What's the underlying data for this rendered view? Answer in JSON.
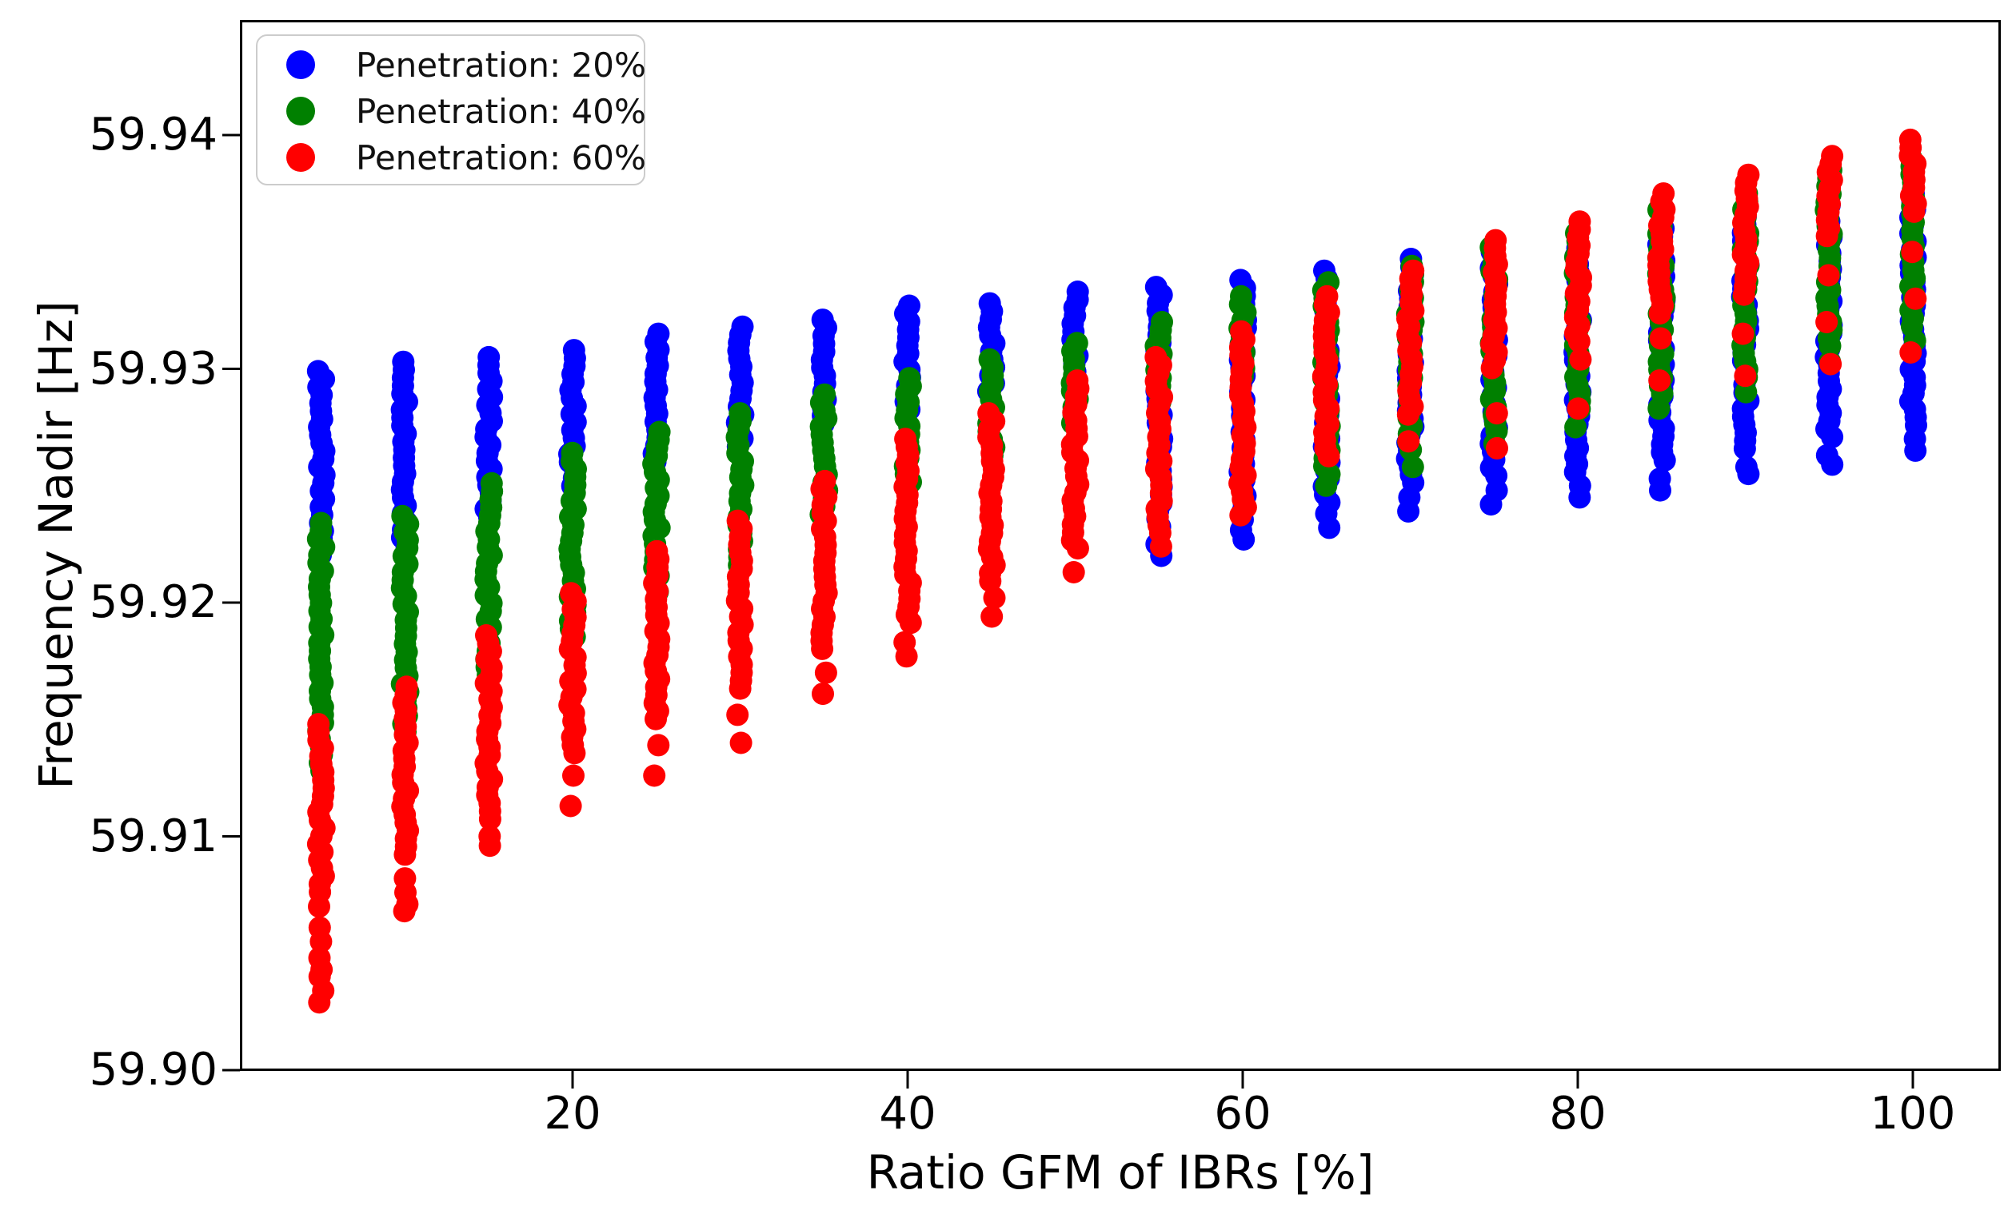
{
  "axes": {
    "xlabel": "Ratio GFM of IBRs [%]",
    "ylabel": "Frequency Nadir [Hz]",
    "x_ticks": [
      20,
      40,
      60,
      80,
      100
    ],
    "x_tick_labels": [
      "20",
      "40",
      "60",
      "80",
      "100"
    ],
    "y_ticks": [
      59.9,
      59.91,
      59.92,
      59.93,
      59.94
    ],
    "y_tick_labels": [
      "59.90",
      "59.91",
      "59.92",
      "59.93",
      "59.94"
    ]
  },
  "legend": {
    "items": [
      {
        "label": "Penetration: 20%",
        "color": "#0000ff"
      },
      {
        "label": "Penetration: 40%",
        "color": "#008000"
      },
      {
        "label": "Penetration: 60%",
        "color": "#ff0000"
      }
    ]
  },
  "chart_data": {
    "type": "scatter",
    "title": "",
    "xlabel": "Ratio GFM of IBRs [%]",
    "ylabel": "Frequency Nadir [Hz]",
    "xlim": [
      0.14,
      105.25
    ],
    "ylim": [
      59.9,
      59.9449
    ],
    "grid": false,
    "legend_position": "upper-left",
    "x": [
      5,
      10,
      15,
      20,
      25,
      30,
      35,
      40,
      45,
      50,
      55,
      60,
      65,
      70,
      75,
      80,
      85,
      90,
      95,
      100
    ],
    "note": "Each column is a vertical distribution of Monte-Carlo frequency-nadir samples; per cluster the values below give the top of the strip (max), the bottom of the dense part (dense_min) and sparse low outlier dots (tail), in Hz.",
    "series": [
      {
        "name": "Penetration: 20%",
        "color": "#0000ff",
        "max": [
          59.9299,
          59.9303,
          59.9305,
          59.9308,
          59.9315,
          59.9318,
          59.9321,
          59.9327,
          59.9328,
          59.9333,
          59.9335,
          59.9338,
          59.9342,
          59.9347,
          59.935,
          59.9355,
          59.936,
          59.9365,
          59.937,
          59.9375
        ],
        "dense_min": [
          59.9219,
          59.9222,
          59.9236,
          59.9249,
          59.9258,
          59.9266,
          59.9274,
          59.9281,
          59.9289,
          59.9296,
          59.923,
          59.9235,
          59.9242,
          59.925,
          59.9252,
          59.9255,
          59.9258,
          59.9263,
          59.9268,
          59.9275
        ],
        "tail": [
          [],
          [],
          [],
          [],
          [],
          [],
          [],
          [],
          [],
          [],
          [
            59.9225,
            59.922
          ],
          [
            59.9231,
            59.9227
          ],
          [
            59.9238,
            59.9232
          ],
          [
            59.9245,
            59.9239
          ],
          [
            59.9248,
            59.9242
          ],
          [
            59.925,
            59.9245
          ],
          [
            59.9253,
            59.9248
          ],
          [
            59.9258,
            59.9255
          ],
          [
            59.9263,
            59.9259
          ],
          [
            59.927,
            59.9265
          ]
        ]
      },
      {
        "name": "Penetration: 40%",
        "color": "#008000",
        "max": [
          59.9234,
          59.9237,
          59.9251,
          59.9264,
          59.9273,
          59.9281,
          59.9289,
          59.9296,
          59.9304,
          59.9311,
          59.932,
          59.9331,
          59.9337,
          59.9344,
          59.9352,
          59.9358,
          59.9368,
          59.9375,
          59.9385,
          59.939
        ],
        "dense_min": [
          59.9128,
          59.9144,
          59.9166,
          59.9184,
          59.9202,
          59.9215,
          59.9232,
          59.925,
          59.9261,
          59.9275,
          59.9285,
          59.9296,
          59.9254,
          59.9262,
          59.9272,
          59.928,
          59.9288,
          59.9295,
          59.9308,
          59.9318
        ],
        "tail": [
          [],
          [],
          [],
          [],
          [],
          [],
          [],
          [],
          [],
          [],
          [],
          [],
          [
            59.925
          ],
          [
            59.9258
          ],
          [
            59.9268
          ],
          [
            59.9275
          ],
          [
            59.9283
          ],
          [
            59.929
          ],
          [
            59.9303
          ],
          [
            59.9312
          ]
        ]
      },
      {
        "name": "Penetration: 60%",
        "color": "#ff0000",
        "max": [
          59.9148,
          59.9164,
          59.9186,
          59.9204,
          59.9222,
          59.9235,
          59.9252,
          59.927,
          59.9281,
          59.9295,
          59.9305,
          59.9316,
          59.9331,
          59.9342,
          59.9355,
          59.9363,
          59.9375,
          59.9383,
          59.9391,
          59.9398
        ],
        "dense_min": [
          59.9076,
          59.9089,
          59.9107,
          59.9134,
          59.9149,
          59.9161,
          59.9177,
          59.919,
          59.9209,
          59.922,
          59.9228,
          59.9237,
          59.926,
          59.9279,
          59.93,
          59.931,
          59.9322,
          59.933,
          59.9355,
          59.9367
        ],
        "tail": [
          [
            59.907,
            59.9061,
            59.9055,
            59.9048,
            59.9043,
            59.904,
            59.9034,
            59.9029
          ],
          [
            59.9082,
            59.9076,
            59.9071,
            59.9068
          ],
          [
            59.91,
            59.9096
          ],
          [
            59.9126,
            59.9113
          ],
          [
            59.9139,
            59.9126
          ],
          [
            59.9152,
            59.914
          ],
          [
            59.917,
            59.9161
          ],
          [
            59.9183,
            59.9177
          ],
          [
            59.9202,
            59.9194
          ],
          [
            59.9213
          ],
          [
            59.9224
          ],
          [],
          [],
          [
            59.9269
          ],
          [
            59.9281,
            59.9266
          ],
          [
            59.9304,
            59.9283
          ],
          [
            59.9313,
            59.9295
          ],
          [
            59.9315,
            59.9297
          ],
          [
            59.934,
            59.932,
            59.9302
          ],
          [
            59.935,
            59.933,
            59.9307
          ]
        ]
      }
    ]
  }
}
